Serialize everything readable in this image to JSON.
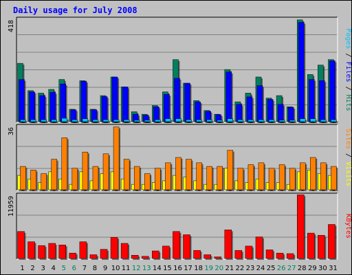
{
  "title": "Daily usage for July 2008",
  "colors": {
    "background": "#c0c0c0",
    "plot": "#c0c0c0",
    "gridline": "#808080",
    "title": "#0000ff",
    "weekday_label": "#000000",
    "weekend_label": "#00805f",
    "hits": "#00805f",
    "files": "#0000ff",
    "pages": "#00c0ff",
    "visits": "#ffff00",
    "sites": "#ff8000",
    "kbytes": "#ff0000"
  },
  "right_labels": {
    "top": [
      "Pages",
      " / ",
      "Files",
      " / ",
      "Hits"
    ],
    "middle": [
      "Sites",
      " / ",
      "Visits"
    ],
    "bottom": [
      "KBytes"
    ]
  },
  "chart_data": [
    {
      "type": "bar",
      "panel": "top",
      "y_max_label": "418",
      "ylim": [
        0,
        418
      ],
      "categories": [
        "1",
        "2",
        "3",
        "4",
        "5",
        "6",
        "7",
        "8",
        "9",
        "10",
        "11",
        "12",
        "13",
        "14",
        "15",
        "16",
        "17",
        "18",
        "19",
        "20",
        "21",
        "22",
        "23",
        "24",
        "25",
        "26",
        "27",
        "28",
        "29",
        "30",
        "31"
      ],
      "weekend_days": [
        "5",
        "6",
        "12",
        "13",
        "19",
        "20",
        "26",
        "27"
      ],
      "series": [
        {
          "name": "Hits",
          "values": [
            235,
            125,
            115,
            130,
            170,
            50,
            165,
            50,
            105,
            180,
            140,
            40,
            30,
            65,
            120,
            250,
            155,
            85,
            45,
            30,
            210,
            80,
            115,
            180,
            95,
            105,
            60,
            410,
            190,
            228,
            250
          ]
        },
        {
          "name": "Files",
          "values": [
            170,
            120,
            105,
            118,
            152,
            48,
            163,
            48,
            101,
            180,
            140,
            30,
            26,
            60,
            110,
            175,
            155,
            80,
            42,
            28,
            200,
            70,
            100,
            145,
            90,
            70,
            58,
            400,
            170,
            165,
            245
          ]
        },
        {
          "name": "Pages",
          "values": [
            8,
            8,
            8,
            8,
            14,
            8,
            12,
            8,
            8,
            8,
            8,
            6,
            6,
            8,
            12,
            12,
            8,
            8,
            8,
            6,
            12,
            8,
            8,
            8,
            8,
            6,
            6,
            12,
            12,
            8,
            8
          ]
        }
      ]
    },
    {
      "type": "bar",
      "panel": "middle",
      "y_max_label": "36",
      "ylim": [
        0,
        36
      ],
      "categories": [
        "1",
        "2",
        "3",
        "4",
        "5",
        "6",
        "7",
        "8",
        "9",
        "10",
        "11",
        "12",
        "13",
        "14",
        "15",
        "16",
        "17",
        "18",
        "19",
        "20",
        "21",
        "22",
        "23",
        "24",
        "25",
        "26",
        "27",
        "28",
        "29",
        "30",
        "31"
      ],
      "series": [
        {
          "name": "Visits",
          "values": [
            8,
            6,
            4,
            10,
            6,
            3,
            10,
            5,
            9,
            10,
            6,
            3,
            3,
            4,
            5,
            8,
            7,
            5,
            3,
            3,
            12,
            5,
            4,
            6,
            4,
            4,
            3,
            10,
            11,
            9,
            8
          ]
        },
        {
          "name": "Sites",
          "values": [
            13,
            11,
            9,
            17,
            29,
            12,
            21,
            13,
            20,
            35,
            17,
            13,
            9,
            12,
            15,
            18,
            17,
            15,
            13,
            13,
            22,
            12,
            14,
            15,
            12,
            14,
            12,
            15,
            18,
            15,
            13
          ]
        }
      ]
    },
    {
      "type": "bar",
      "panel": "bottom",
      "y_max_label": "11959",
      "ylim": [
        0,
        11959
      ],
      "categories": [
        "1",
        "2",
        "3",
        "4",
        "5",
        "6",
        "7",
        "8",
        "9",
        "10",
        "11",
        "12",
        "13",
        "14",
        "15",
        "16",
        "17",
        "18",
        "19",
        "20",
        "21",
        "22",
        "23",
        "24",
        "25",
        "26",
        "27",
        "28",
        "29",
        "30",
        "31"
      ],
      "series": [
        {
          "name": "KBytes",
          "values": [
            5000,
            3100,
            2400,
            2800,
            2500,
            1000,
            3100,
            700,
            1700,
            3900,
            2800,
            600,
            400,
            1400,
            2300,
            5000,
            4400,
            1500,
            700,
            300,
            5300,
            1500,
            2300,
            4000,
            1600,
            1000,
            900,
            11800,
            4700,
            4300,
            6300
          ]
        }
      ]
    }
  ]
}
